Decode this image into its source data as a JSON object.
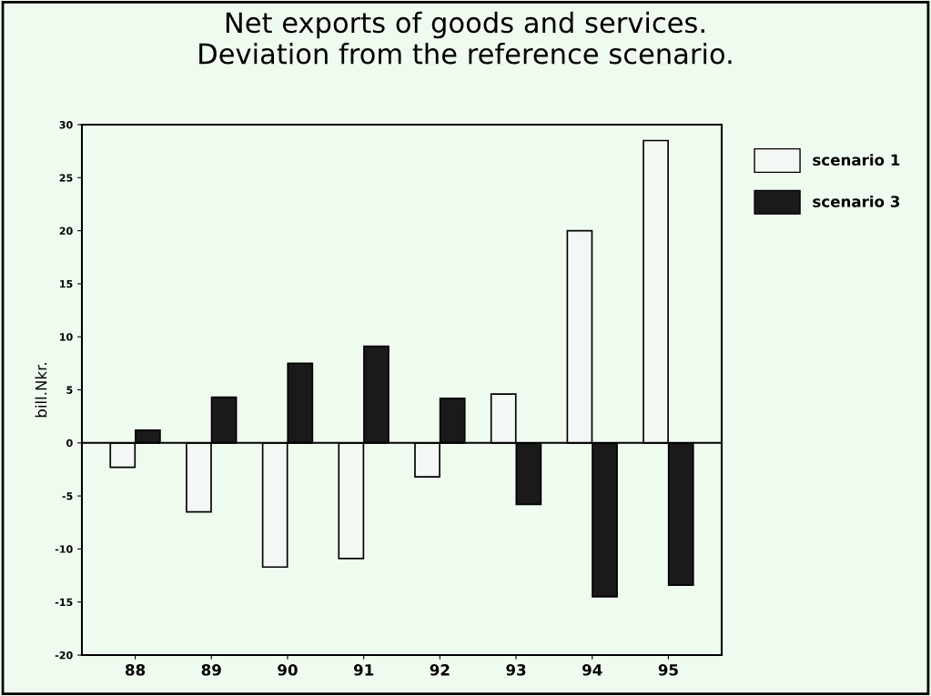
{
  "chart_data": {
    "type": "bar",
    "title": "Net exports of goods and services.\nDeviation from the reference scenario.",
    "ylabel": "bill.Nkr.",
    "categories": [
      "88",
      "89",
      "90",
      "91",
      "92",
      "93",
      "94",
      "95"
    ],
    "series": [
      {
        "name": "scenario 1",
        "color": "#f4f8f4",
        "values": [
          -2.3,
          -6.5,
          -11.7,
          -10.9,
          -3.2,
          4.6,
          20.0,
          28.5
        ]
      },
      {
        "name": "scenario 3",
        "color": "#1a1a1a",
        "values": [
          1.2,
          4.3,
          7.5,
          9.1,
          4.2,
          -5.8,
          -14.5,
          -13.4
        ]
      }
    ],
    "ylim": [
      -20,
      30
    ],
    "yticks": [
      -20,
      -15,
      -10,
      -5,
      0,
      5,
      10,
      15,
      20,
      25,
      30
    ],
    "grid": false,
    "legend": "top right",
    "ref_lines": [
      {
        "axis": "y",
        "value": 0,
        "color": "#000000"
      }
    ]
  }
}
